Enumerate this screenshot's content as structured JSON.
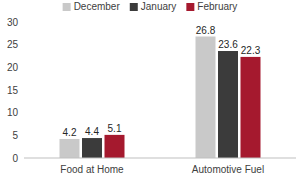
{
  "chart_data": {
    "type": "bar",
    "categories": [
      "Food at Home",
      "Automotive Fuel"
    ],
    "series": [
      {
        "name": "December",
        "color": "#c9c9c9",
        "values": [
          4.2,
          26.8
        ]
      },
      {
        "name": "January",
        "color": "#3b3b3b",
        "values": [
          4.4,
          23.6
        ]
      },
      {
        "name": "February",
        "color": "#a5192e",
        "values": [
          5.1,
          22.3
        ]
      }
    ],
    "ylim": [
      0,
      30
    ],
    "yticks": [
      0,
      5,
      10,
      15,
      20,
      25,
      30
    ],
    "grid": false,
    "legend": "top",
    "data_labels": true
  }
}
